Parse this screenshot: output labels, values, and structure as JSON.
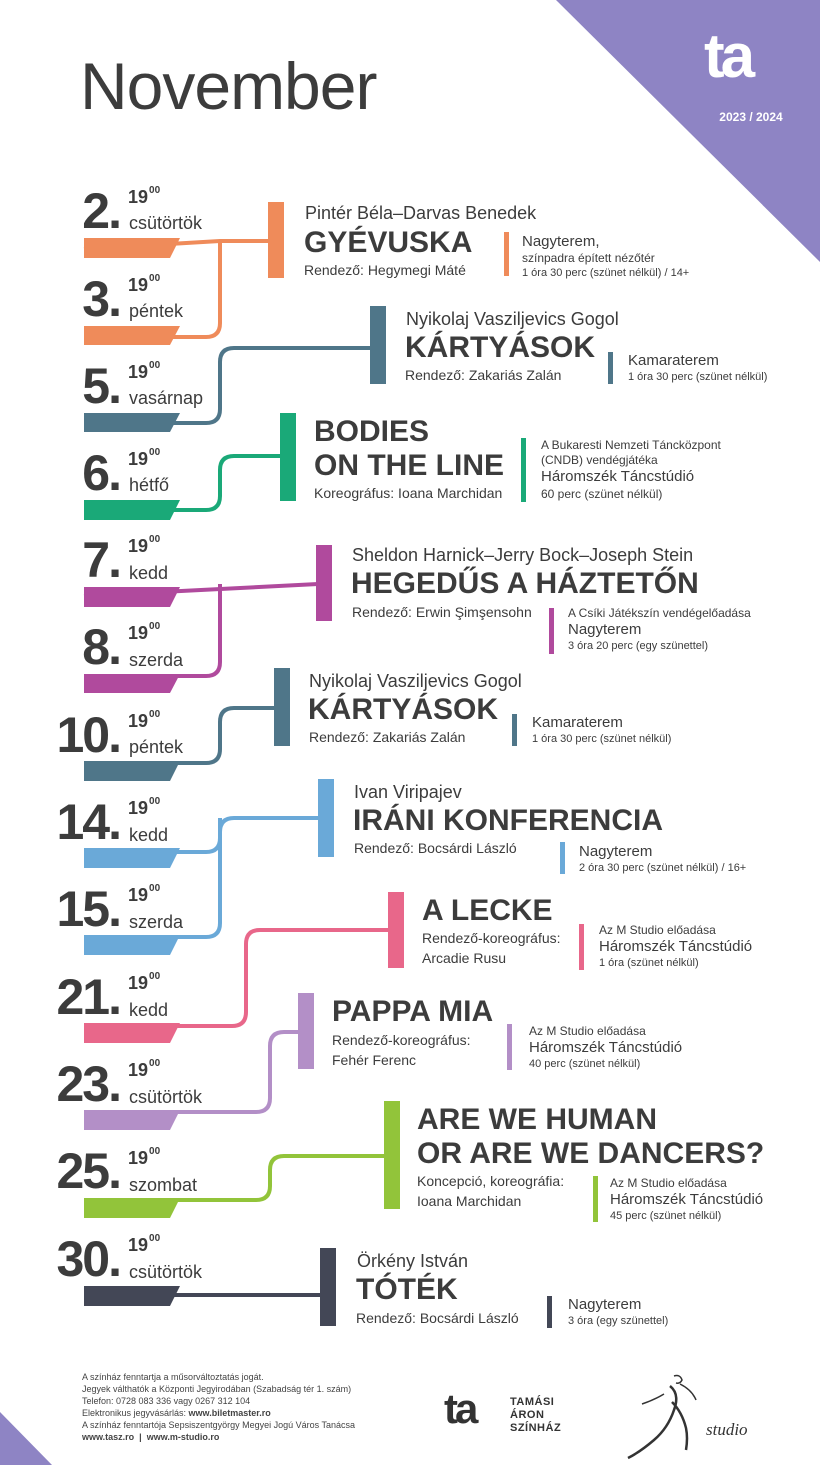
{
  "header": {
    "month": "November",
    "season": "2023 / 2024",
    "logo_text": "ta"
  },
  "colors": {
    "purple_corner": "#8e84c4",
    "orange": "#ef8b5a",
    "slate": "#4f7689",
    "green": "#1aa978",
    "magenta": "#b04a9d",
    "light_blue": "#6aa9d8",
    "pink": "#e8678a",
    "lavender": "#b38fc7",
    "lime": "#92c43a",
    "dark": "#434756"
  },
  "dates": [
    {
      "day": "2.",
      "time": "19",
      "time_sup": "00",
      "weekday": "csütörtök"
    },
    {
      "day": "3.",
      "time": "19",
      "time_sup": "00",
      "weekday": "péntek"
    },
    {
      "day": "5.",
      "time": "19",
      "time_sup": "00",
      "weekday": "vasárnap"
    },
    {
      "day": "6.",
      "time": "19",
      "time_sup": "00",
      "weekday": "hétfő"
    },
    {
      "day": "7.",
      "time": "19",
      "time_sup": "00",
      "weekday": "kedd"
    },
    {
      "day": "8.",
      "time": "19",
      "time_sup": "00",
      "weekday": "szerda"
    },
    {
      "day": "10.",
      "time": "19",
      "time_sup": "00",
      "weekday": "péntek"
    },
    {
      "day": "14.",
      "time": "19",
      "time_sup": "00",
      "weekday": "kedd"
    },
    {
      "day": "15.",
      "time": "19",
      "time_sup": "00",
      "weekday": "szerda"
    },
    {
      "day": "21.",
      "time": "19",
      "time_sup": "00",
      "weekday": "kedd"
    },
    {
      "day": "23.",
      "time": "19",
      "time_sup": "00",
      "weekday": "csütörtök"
    },
    {
      "day": "25.",
      "time": "19",
      "time_sup": "00",
      "weekday": "szombat"
    },
    {
      "day": "30.",
      "time": "19",
      "time_sup": "00",
      "weekday": "csütörtök"
    }
  ],
  "shows": [
    {
      "author": "Pintér Béla–Darvas Benedek",
      "title": "GYÉVUSKA",
      "director": "Rendező: Hegymegi Máté",
      "venue_pre": "",
      "venue": "Nagyterem,",
      "venue2": "színpadra épített nézőtér",
      "duration": "1 óra 30 perc (szünet nélkül) / 14+"
    },
    {
      "author": "Nyikolaj Vasziljevics Gogol",
      "title": "KÁRTYÁSOK",
      "director": "Rendező: Zakariás Zalán",
      "venue_pre": "",
      "venue": "Kamaraterem",
      "venue2": "",
      "duration": "1 óra 30 perc (szünet nélkül)"
    },
    {
      "author": "",
      "title": "BODIES",
      "title2": "ON THE LINE",
      "director": "Koreográfus: Ioana Marchidan",
      "venue_pre": "A Bukaresti Nemzeti Táncközpont",
      "venue_pre2": "(CNDB) vendégjátéka",
      "venue": "Háromszék Táncstúdió",
      "venue2": "",
      "duration": "60 perc (szünet nélkül)"
    },
    {
      "author": "Sheldon Harnick–Jerry Bock–Joseph Stein",
      "title": "HEGEDŰS A HÁZTETŐN",
      "director": "Rendező: Erwin Şimşensohn",
      "venue_pre": "A Csíki Játékszín vendégelőadása",
      "venue": "Nagyterem",
      "venue2": "",
      "duration": "3 óra 20 perc (egy szünettel)"
    },
    {
      "author": "Nyikolaj Vasziljevics Gogol",
      "title": "KÁRTYÁSOK",
      "director": "Rendező: Zakariás Zalán",
      "venue_pre": "",
      "venue": "Kamaraterem",
      "venue2": "",
      "duration": "1 óra 30 perc (szünet nélkül)"
    },
    {
      "author": "Ivan Viripajev",
      "title": "IRÁNI KONFERENCIA",
      "director": "Rendező: Bocsárdi László",
      "venue_pre": "",
      "venue": "Nagyterem",
      "venue2": "",
      "duration": "2 óra 30 perc (szünet nélkül) / 16+"
    },
    {
      "author": "",
      "title": "A LECKE",
      "director": "Rendező-koreográfus:",
      "director2": "Arcadie Rusu",
      "venue_pre": "Az M Studio előadása",
      "venue": "Háromszék Táncstúdió",
      "venue2": "",
      "duration": "1 óra (szünet nélkül)"
    },
    {
      "author": "",
      "title": "PAPPA MIA",
      "director": "Rendező-koreográfus:",
      "director2": "Fehér Ferenc",
      "venue_pre": "Az M Studio előadása",
      "venue": "Háromszék Táncstúdió",
      "venue2": "",
      "duration": "40 perc (szünet nélkül)"
    },
    {
      "author": "",
      "title": "ARE WE HUMAN",
      "title2": "OR ARE WE DANCERS?",
      "director": "Koncepció, koreográfia:",
      "director2": "Ioana Marchidan",
      "venue_pre": "Az M Studio előadása",
      "venue": "Háromszék Táncstúdió",
      "venue2": "",
      "duration": "45 perc (szünet nélkül)"
    },
    {
      "author": "Örkény István",
      "title": "TÓTÉK",
      "director": "Rendező: Bocsárdi László",
      "venue_pre": "",
      "venue": "Nagyterem",
      "venue2": "",
      "duration": "3 óra (egy szünettel)"
    }
  ],
  "footer": {
    "line1": "A színház fenntartja a műsorváltoztatás jogát.",
    "line2": "Jegyek válthatók a Központi Jegyirodában (Szabadság tér 1. szám)",
    "line3": "Telefon: 0728 083 336 vagy 0267 312 104",
    "line4_label": "Elektronikus jegyvásárlás: ",
    "line4_link": "www.biletmaster.ro",
    "line5": "A színház fenntartója Sepsiszentgyörgy Megyei Jogú Város Tanácsa",
    "line6": "www.tasz.ro  |  www.m-studio.ro"
  },
  "logos": {
    "tasz_mark": "ta",
    "tasz_name1": "TAMÁSI",
    "tasz_name2": "ÁRON",
    "tasz_name3": "SZÍNHÁZ",
    "mstudio": "studio"
  }
}
